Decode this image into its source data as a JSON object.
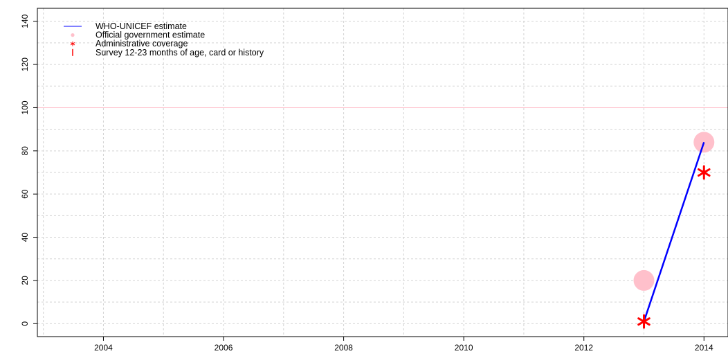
{
  "chart_data": {
    "type": "line",
    "title": "",
    "xlabel": "",
    "ylabel": "",
    "xlim": [
      2002.9,
      2014.4
    ],
    "ylim": [
      -6,
      146
    ],
    "x_ticks": [
      2004,
      2006,
      2008,
      2010,
      2012,
      2014
    ],
    "x_tick_labels": [
      "2004",
      "2006",
      "2008",
      "2010",
      "2012",
      "2014"
    ],
    "y_ticks": [
      0,
      20,
      40,
      60,
      80,
      100,
      120,
      140
    ],
    "y_tick_labels": [
      "0",
      "20",
      "40",
      "60",
      "80",
      "100",
      "120",
      "140"
    ],
    "grid": true,
    "grid_minor_y": [
      10,
      30,
      50,
      70,
      90,
      110,
      130
    ],
    "grid_minor_x": [
      2003,
      2005,
      2007,
      2009,
      2011,
      2013
    ],
    "reference_line": {
      "y": 100,
      "color": "#ffc0cb"
    },
    "legend_position": "top-left",
    "legend": [
      {
        "label": "WHO-UNICEF estimate",
        "symbol": "line",
        "color": "#0000ff"
      },
      {
        "label": "Official government estimate",
        "symbol": "circle",
        "color": "#ffc0cb"
      },
      {
        "label": "Administrative coverage",
        "symbol": "asterisk",
        "color": "#ff0000"
      },
      {
        "label": "Survey 12-23 months of age, card or history",
        "symbol": "bar",
        "color": "#ff0000"
      }
    ],
    "series": [
      {
        "name": "WHO-UNICEF estimate",
        "style": "line",
        "color": "#0000ff",
        "x": [
          2013,
          2014
        ],
        "y": [
          1,
          84
        ]
      },
      {
        "name": "Official government estimate",
        "style": "circle",
        "color": "#ffc0cb",
        "x": [
          2013,
          2014
        ],
        "y": [
          20,
          84
        ]
      },
      {
        "name": "Administrative coverage",
        "style": "asterisk",
        "color": "#ff0000",
        "x": [
          2013,
          2014
        ],
        "y": [
          1,
          70
        ]
      }
    ]
  }
}
